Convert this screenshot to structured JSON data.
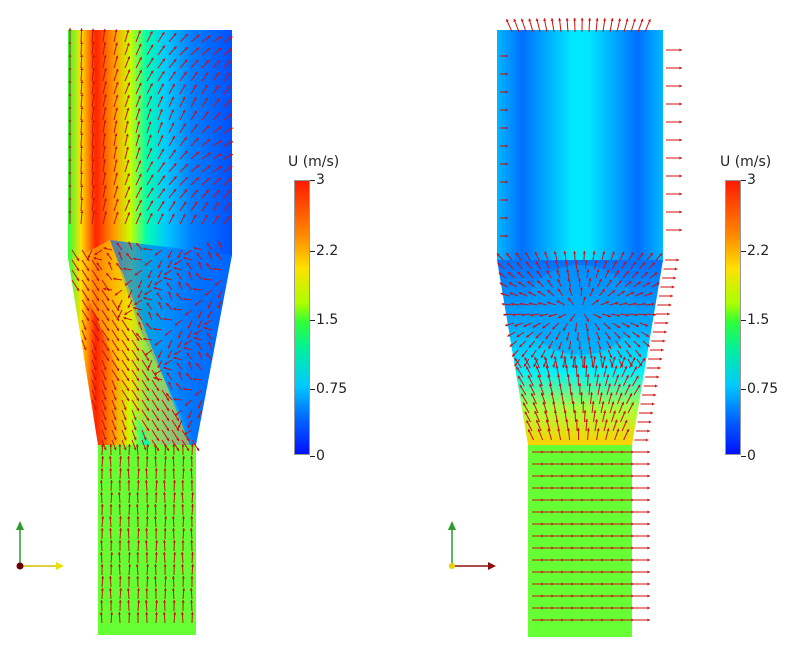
{
  "left_plot": {
    "colorbar": {
      "title": "U (m/s)",
      "ticks": [
        "3",
        "2.2",
        "1.5",
        "0.75",
        "0"
      ]
    }
  },
  "right_plot": {
    "colorbar": {
      "title": "U (m/s)",
      "ticks": [
        "3",
        "2.2",
        "1.5",
        "0.75",
        "0"
      ]
    }
  },
  "colors": {
    "arrow": "#cc1010",
    "max": "#ff1a00",
    "min": "#0010ff"
  },
  "icons": [
    "axes-triad-icon",
    "axes-triad-icon"
  ]
}
